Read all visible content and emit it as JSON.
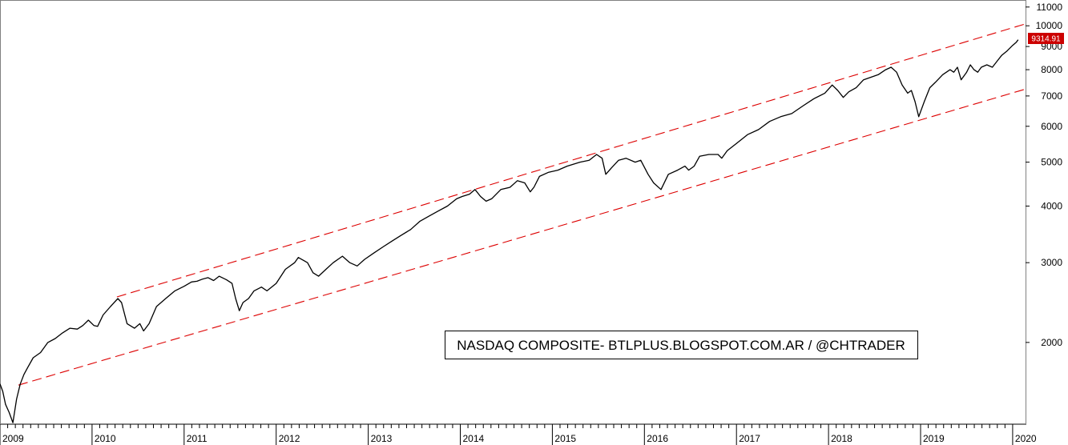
{
  "chart_data": {
    "type": "line",
    "title": "",
    "annotation": "NASDAQ COMPOSITE- BTLPLUS.BLOGSPOT.COM.AR / @CHTRADER",
    "last_value_label": "9314.91",
    "y_scale": "log",
    "ylim": [
      1320,
      11400
    ],
    "y_ticks": [
      2000,
      3000,
      4000,
      5000,
      6000,
      7000,
      8000,
      9000,
      10000,
      11000
    ],
    "xlim": [
      2009.0,
      2020.14
    ],
    "x_ticks": [
      2009,
      2010,
      2011,
      2012,
      2013,
      2014,
      2015,
      2016,
      2017,
      2018,
      2019,
      2020
    ],
    "grid": false,
    "series": [
      {
        "x": [
          2009.0,
          2009.03,
          2009.06,
          2009.1,
          2009.14,
          2009.18,
          2009.22,
          2009.26,
          2009.3,
          2009.36,
          2009.44,
          2009.52,
          2009.6,
          2009.68,
          2009.76,
          2009.84,
          2009.9,
          2009.96,
          2010.02,
          2010.06,
          2010.12,
          2010.2,
          2010.28,
          2010.32,
          2010.38,
          2010.46,
          2010.52,
          2010.56,
          2010.62,
          2010.7,
          2010.8,
          2010.9,
          2011.0,
          2011.08,
          2011.14,
          2011.2,
          2011.26,
          2011.32,
          2011.38,
          2011.46,
          2011.52,
          2011.56,
          2011.6,
          2011.64,
          2011.7,
          2011.76,
          2011.84,
          2011.9,
          2012.0,
          2012.1,
          2012.2,
          2012.24,
          2012.34,
          2012.4,
          2012.46,
          2012.54,
          2012.62,
          2012.72,
          2012.8,
          2012.88,
          2012.96,
          2013.06,
          2013.16,
          2013.26,
          2013.36,
          2013.46,
          2013.56,
          2013.66,
          2013.76,
          2013.86,
          2013.96,
          2014.02,
          2014.1,
          2014.16,
          2014.22,
          2014.28,
          2014.34,
          2014.44,
          2014.54,
          2014.62,
          2014.7,
          2014.76,
          2014.8,
          2014.86,
          2014.96,
          2015.06,
          2015.16,
          2015.3,
          2015.4,
          2015.48,
          2015.54,
          2015.58,
          2015.64,
          2015.72,
          2015.8,
          2015.9,
          2015.96,
          2016.04,
          2016.1,
          2016.18,
          2016.26,
          2016.36,
          2016.44,
          2016.48,
          2016.54,
          2016.6,
          2016.7,
          2016.8,
          2016.84,
          2016.9,
          2017.0,
          2017.12,
          2017.24,
          2017.36,
          2017.48,
          2017.6,
          2017.72,
          2017.84,
          2017.96,
          2018.04,
          2018.1,
          2018.16,
          2018.22,
          2018.3,
          2018.38,
          2018.46,
          2018.54,
          2018.62,
          2018.68,
          2018.74,
          2018.8,
          2018.86,
          2018.9,
          2018.94,
          2018.98,
          2019.04,
          2019.1,
          2019.16,
          2019.24,
          2019.32,
          2019.36,
          2019.4,
          2019.44,
          2019.5,
          2019.54,
          2019.58,
          2019.62,
          2019.66,
          2019.72,
          2019.78,
          2019.84,
          2019.88,
          2019.94,
          2020.0,
          2020.04,
          2020.06
        ],
        "values": [
          1620,
          1560,
          1460,
          1400,
          1330,
          1500,
          1620,
          1700,
          1760,
          1850,
          1900,
          2000,
          2040,
          2100,
          2150,
          2140,
          2180,
          2240,
          2180,
          2170,
          2300,
          2400,
          2500,
          2450,
          2200,
          2150,
          2200,
          2120,
          2200,
          2400,
          2500,
          2600,
          2660,
          2720,
          2730,
          2760,
          2780,
          2740,
          2800,
          2750,
          2700,
          2500,
          2350,
          2450,
          2500,
          2600,
          2650,
          2600,
          2700,
          2900,
          3000,
          3080,
          3000,
          2850,
          2800,
          2900,
          3000,
          3100,
          3000,
          2950,
          3050,
          3150,
          3250,
          3350,
          3450,
          3550,
          3700,
          3800,
          3900,
          4000,
          4150,
          4200,
          4250,
          4350,
          4200,
          4100,
          4150,
          4350,
          4400,
          4550,
          4500,
          4300,
          4400,
          4650,
          4750,
          4800,
          4900,
          5000,
          5050,
          5200,
          5100,
          4700,
          4850,
          5050,
          5100,
          5000,
          5050,
          4700,
          4500,
          4350,
          4700,
          4800,
          4900,
          4800,
          4900,
          5150,
          5200,
          5200,
          5100,
          5300,
          5500,
          5750,
          5900,
          6150,
          6300,
          6400,
          6650,
          6900,
          7100,
          7400,
          7200,
          6950,
          7150,
          7300,
          7600,
          7700,
          7800,
          8000,
          8100,
          7900,
          7400,
          7100,
          7200,
          6800,
          6300,
          6800,
          7300,
          7500,
          7800,
          8000,
          7900,
          8100,
          7600,
          7900,
          8200,
          8000,
          7900,
          8100,
          8200,
          8100,
          8400,
          8600,
          8800,
          9050,
          9200,
          9314.91
        ]
      }
    ],
    "channel_lines": [
      {
        "name": "upper",
        "x": [
          2010.27,
          2020.14
        ],
        "values": [
          2520,
          10100
        ]
      },
      {
        "name": "lower",
        "x": [
          2009.2,
          2020.14
        ],
        "values": [
          1610,
          7250
        ]
      }
    ],
    "colors": {
      "price": "#000000",
      "channel": "#dd0000",
      "last_value_bg": "#cc0000",
      "last_value_fg": "#ffffff",
      "axis": "#808080"
    }
  }
}
